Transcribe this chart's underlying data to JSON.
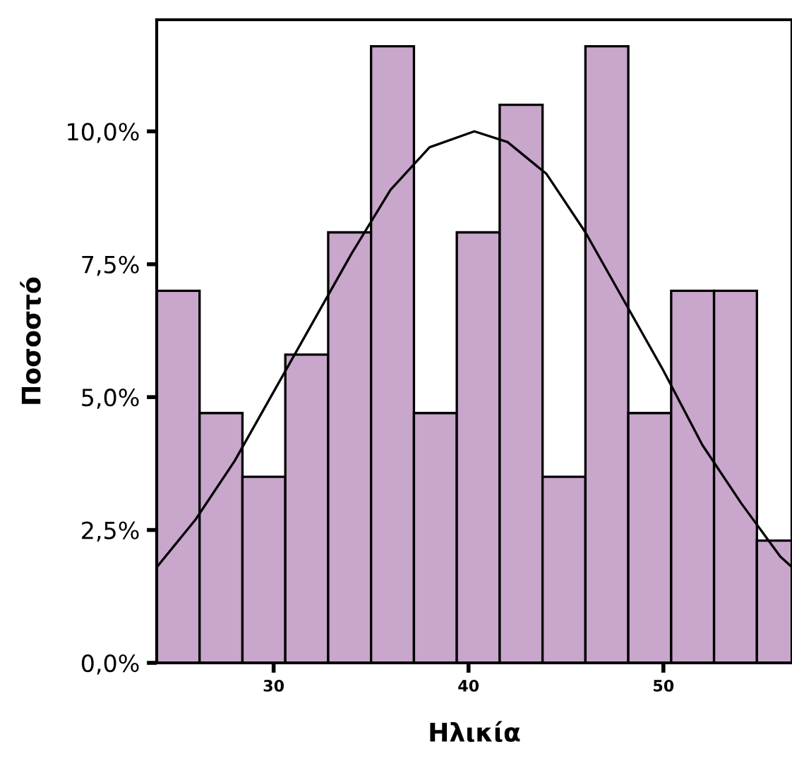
{
  "chart_data": {
    "type": "histogram",
    "xlabel": "Ηλικία",
    "ylabel": "Ποσοστό",
    "series": [
      {
        "type": "histogram",
        "color": "#c9a6cc",
        "bins": [
          24,
          26.2,
          28.4,
          30.6,
          32.8,
          35,
          37.2,
          39.4,
          41.6,
          43.8,
          46,
          48.2,
          50.4,
          52.6,
          54.8,
          57
        ],
        "values": [
          7.0,
          4.7,
          3.5,
          5.8,
          8.1,
          11.6,
          4.7,
          8.1,
          10.5,
          3.5,
          11.6,
          4.7,
          7.0,
          7.0,
          2.3
        ]
      },
      {
        "type": "line",
        "color": "#000000",
        "x": [
          24,
          26,
          28,
          30,
          32,
          34,
          36,
          38,
          40.3,
          42,
          44,
          46,
          48,
          50,
          52,
          54,
          56,
          56.6
        ],
        "values": [
          1.8,
          2.7,
          3.8,
          5.1,
          6.4,
          7.7,
          8.9,
          9.7,
          10.0,
          9.8,
          9.2,
          8.1,
          6.8,
          5.5,
          4.1,
          3.0,
          2.0,
          1.8
        ]
      }
    ],
    "xlim": [
      24,
      56.6
    ],
    "xticks": [
      30,
      40,
      50
    ],
    "ylim": [
      0,
      12.1
    ],
    "yticks": [
      {
        "value": 0,
        "label": "0,0%"
      },
      {
        "value": 2.5,
        "label": "2,5%"
      },
      {
        "value": 5,
        "label": "5,0%"
      },
      {
        "value": 7.5,
        "label": "7,5%"
      },
      {
        "value": 10,
        "label": "10,0%"
      }
    ],
    "grid": false,
    "legend": false
  }
}
